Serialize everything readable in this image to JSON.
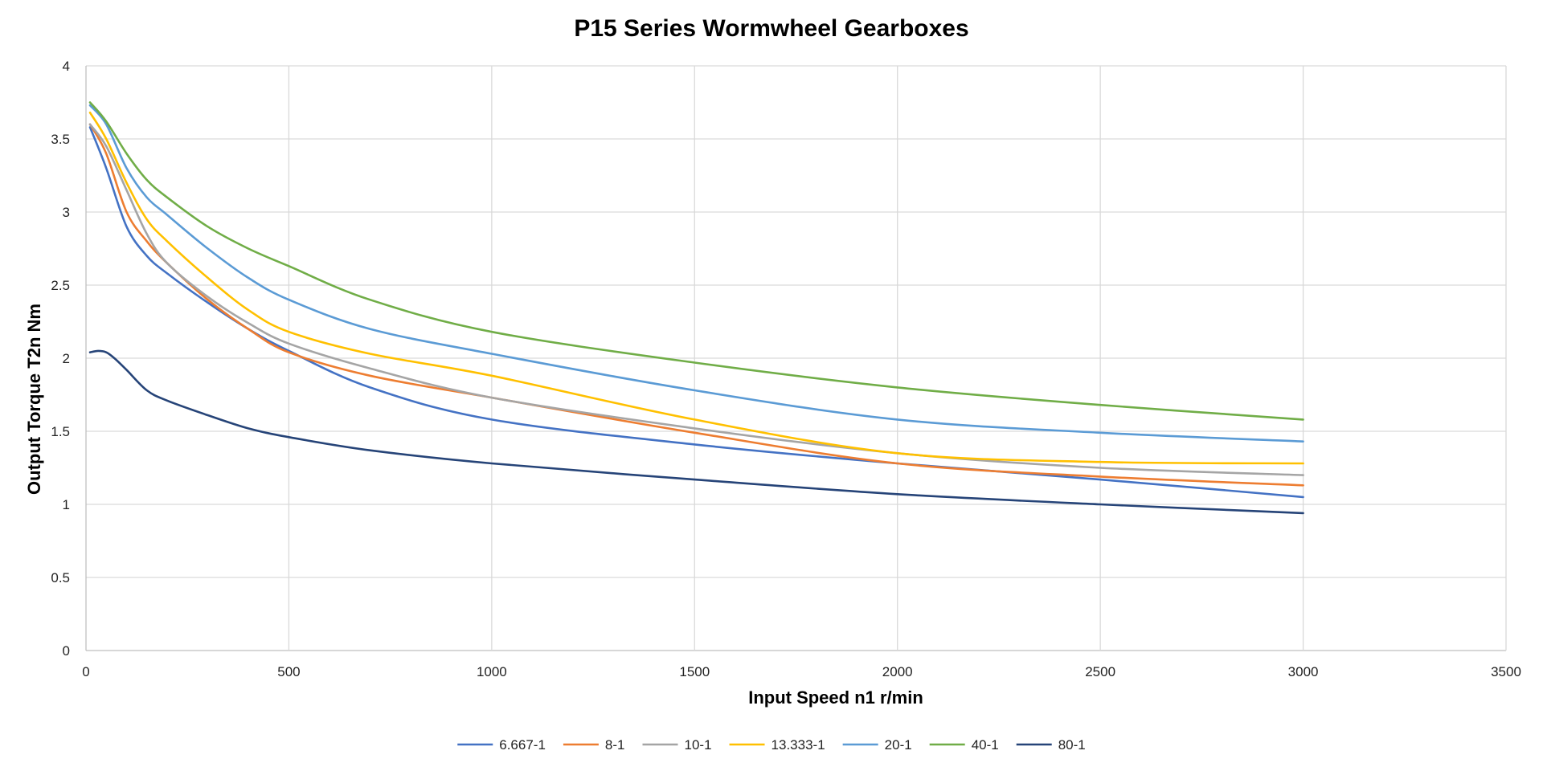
{
  "chart_data": {
    "type": "line",
    "title": "P15 Series Wormwheel Gearboxes",
    "xlabel": "Input Speed n1 r/min",
    "ylabel": "Output Torque T2n Nm",
    "xlim": [
      0,
      3500
    ],
    "ylim": [
      0,
      4
    ],
    "xticks": [
      0,
      500,
      1000,
      1500,
      2000,
      2500,
      3000,
      3500
    ],
    "yticks": [
      0,
      0.5,
      1,
      1.5,
      2,
      2.5,
      3,
      3.5,
      4
    ],
    "grid": true,
    "legend_position": "bottom",
    "series": [
      {
        "name": "6.667-1",
        "color": "#4472c4",
        "x": [
          10,
          50,
          100,
          150,
          200,
          300,
          400,
          500,
          700,
          1000,
          1500,
          2000,
          2500,
          3000
        ],
        "y": [
          3.58,
          3.3,
          2.9,
          2.7,
          2.58,
          2.38,
          2.2,
          2.05,
          1.8,
          1.58,
          1.41,
          1.28,
          1.17,
          1.05
        ]
      },
      {
        "name": "8-1",
        "color": "#ed7d31",
        "x": [
          10,
          50,
          100,
          150,
          200,
          300,
          400,
          500,
          700,
          1000,
          1500,
          2000,
          2500,
          3000
        ],
        "y": [
          3.6,
          3.4,
          3.0,
          2.8,
          2.65,
          2.4,
          2.2,
          2.04,
          1.88,
          1.73,
          1.49,
          1.28,
          1.19,
          1.13
        ]
      },
      {
        "name": "10-1",
        "color": "#a5a5a5",
        "x": [
          10,
          50,
          100,
          150,
          200,
          300,
          400,
          500,
          700,
          1000,
          1500,
          2000,
          2500,
          3000
        ],
        "y": [
          3.6,
          3.45,
          3.15,
          2.85,
          2.65,
          2.42,
          2.24,
          2.1,
          1.93,
          1.73,
          1.52,
          1.35,
          1.25,
          1.2
        ]
      },
      {
        "name": "13.333-1",
        "color": "#ffc000",
        "x": [
          10,
          50,
          100,
          150,
          200,
          300,
          400,
          500,
          700,
          1000,
          1500,
          2000,
          2500,
          3000
        ],
        "y": [
          3.68,
          3.5,
          3.2,
          2.95,
          2.8,
          2.55,
          2.33,
          2.18,
          2.03,
          1.88,
          1.58,
          1.35,
          1.29,
          1.28
        ]
      },
      {
        "name": "20-1",
        "color": "#5b9bd5",
        "x": [
          10,
          50,
          100,
          150,
          200,
          300,
          400,
          500,
          700,
          1000,
          1500,
          2000,
          2500,
          3000
        ],
        "y": [
          3.73,
          3.6,
          3.3,
          3.1,
          2.98,
          2.75,
          2.55,
          2.4,
          2.2,
          2.03,
          1.78,
          1.58,
          1.49,
          1.43
        ]
      },
      {
        "name": "40-1",
        "color": "#70ad47",
        "x": [
          10,
          50,
          100,
          150,
          200,
          300,
          400,
          500,
          700,
          1000,
          1500,
          2000,
          2500,
          3000
        ],
        "y": [
          3.75,
          3.62,
          3.4,
          3.22,
          3.1,
          2.9,
          2.75,
          2.63,
          2.4,
          2.18,
          1.97,
          1.8,
          1.68,
          1.58
        ]
      },
      {
        "name": "80-1",
        "color": "#264478",
        "x": [
          10,
          30,
          50,
          70,
          100,
          150,
          200,
          300,
          400,
          500,
          700,
          1000,
          1500,
          2000,
          2500,
          3000
        ],
        "y": [
          2.04,
          2.05,
          2.04,
          2.0,
          1.92,
          1.78,
          1.71,
          1.61,
          1.52,
          1.46,
          1.37,
          1.28,
          1.17,
          1.07,
          1.0,
          0.94
        ]
      }
    ]
  }
}
